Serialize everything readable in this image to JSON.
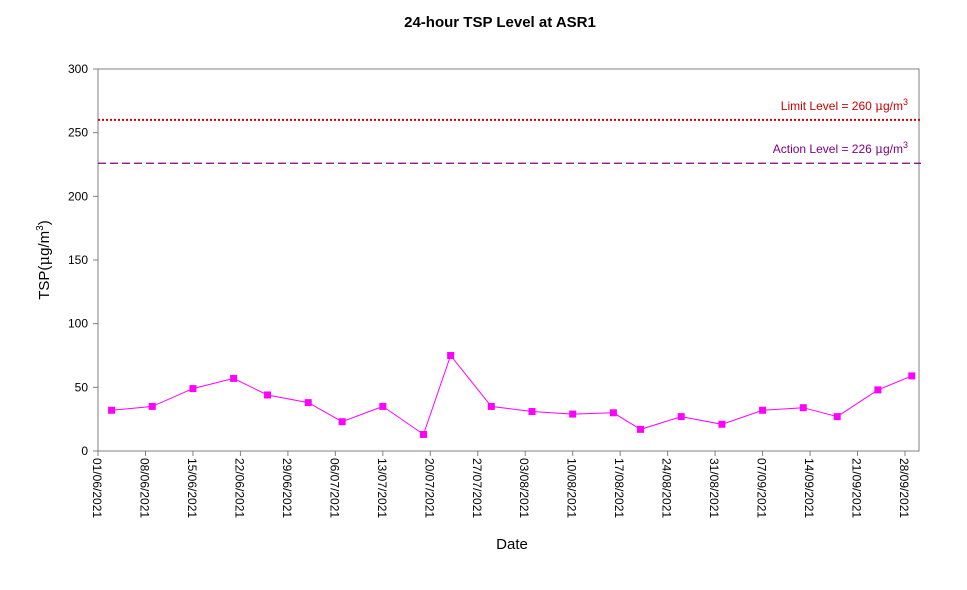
{
  "chart_data": {
    "type": "line",
    "title": "24-hour TSP Level at ASR1",
    "xlabel": "Date",
    "ylabel": {
      "prefix": "TSP(",
      "mu": "μ",
      "unit": "g/m",
      "sup": "3",
      "suffix": ")"
    },
    "ylim": [
      0,
      300
    ],
    "yticks": [
      "0",
      "50",
      "100",
      "150",
      "200",
      "250",
      "300"
    ],
    "xlim": [
      "01/06/2021",
      "28/09/2021"
    ],
    "xticks": [
      "01/06/2021",
      "08/06/2021",
      "15/06/2021",
      "22/06/2021",
      "29/06/2021",
      "06/07/2021",
      "13/07/2021",
      "20/07/2021",
      "27/07/2021",
      "03/08/2021",
      "10/08/2021",
      "17/08/2021",
      "24/08/2021",
      "31/08/2021",
      "07/09/2021",
      "14/09/2021",
      "21/09/2021",
      "28/09/2021"
    ],
    "grid": false,
    "series": [
      {
        "color": "#ff00ff",
        "x": [
          "03/06/2021",
          "09/06/2021",
          "15/06/2021",
          "21/06/2021",
          "26/06/2021",
          "02/07/2021",
          "07/07/2021",
          "13/07/2021",
          "19/07/2021",
          "23/07/2021",
          "29/07/2021",
          "04/08/2021",
          "10/08/2021",
          "16/08/2021",
          "20/08/2021",
          "26/08/2021",
          "01/09/2021",
          "07/09/2021",
          "13/09/2021",
          "18/09/2021",
          "24/09/2021",
          "29/09/2021"
        ],
        "values": [
          32,
          35,
          49,
          57,
          44,
          38,
          23,
          35,
          13,
          75,
          35,
          31,
          29,
          30,
          17,
          27,
          21,
          32,
          34,
          27,
          48,
          59
        ]
      }
    ],
    "reference_lines": [
      {
        "label": "Limit Level  = 260 ",
        "mu": "μ",
        "unit": "g/m",
        "sup": "3",
        "value": 260,
        "color": "#cc0000",
        "style": "dotted"
      },
      {
        "label": "Action Level  = 226 ",
        "mu": "μ",
        "unit": "g/m",
        "sup": "3",
        "value": 226,
        "color": "#800080",
        "style": "dashed"
      }
    ]
  }
}
